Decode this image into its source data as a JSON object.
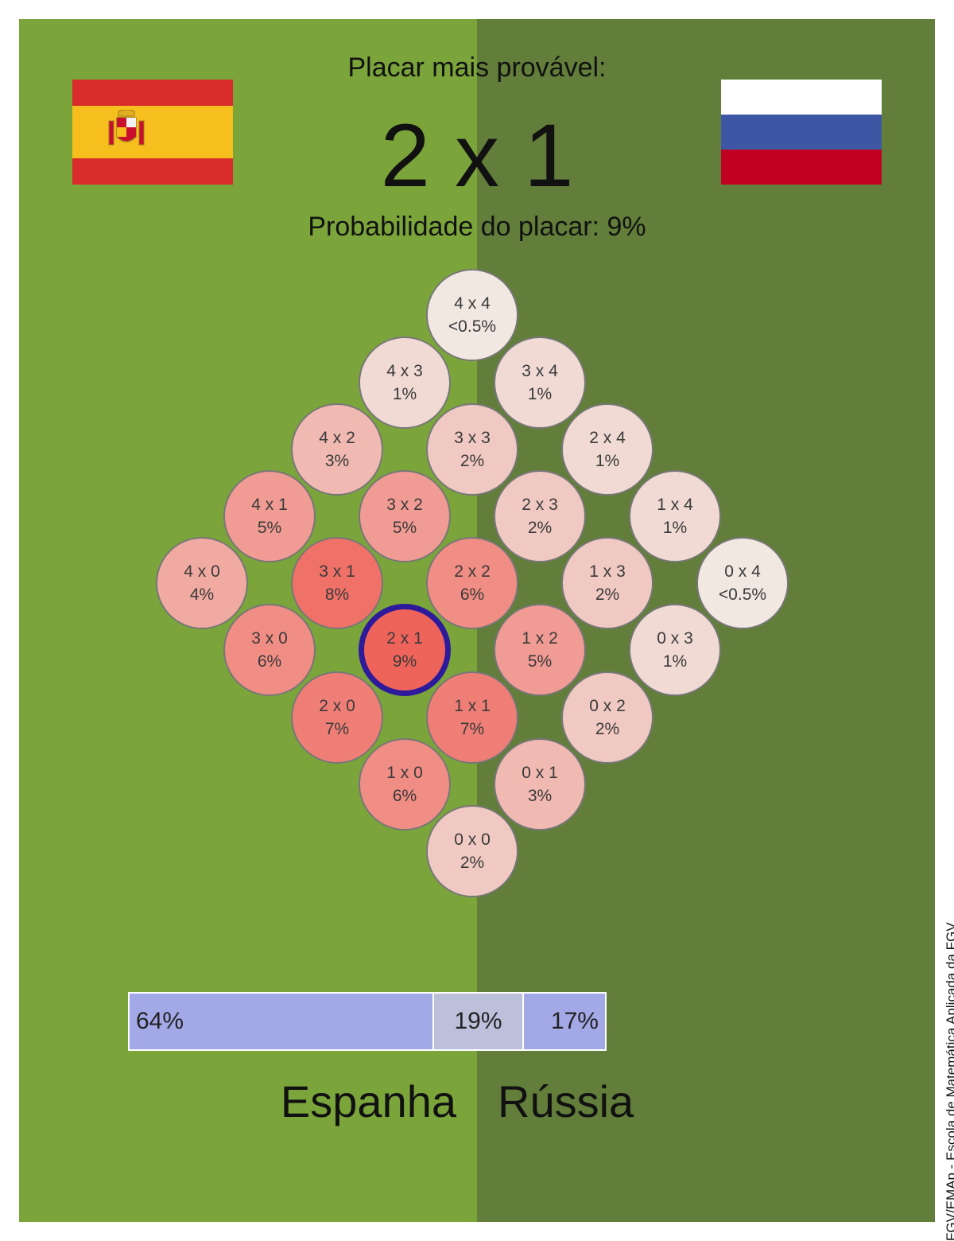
{
  "header": {
    "headline": "Placar mais provável:",
    "score": "2 x 1",
    "probability_text": "Probabilidade do placar: 9%"
  },
  "teams": {
    "home": "Espanha",
    "away": "Rússia"
  },
  "flags": {
    "home": {
      "name": "spain-flag",
      "colors": [
        "#d72b2c",
        "#f6bf1d",
        "#d72b2c"
      ]
    },
    "away": {
      "name": "russia-flag",
      "colors": [
        "#ffffff",
        "#3d57a5",
        "#c20022"
      ]
    }
  },
  "colors": {
    "field_left": "#7ba53b",
    "field_right": "#627e3a",
    "highlight_ring": "#2e1b9c",
    "bar_win": "#a3a8e6",
    "bar_draw": "#bcc0db"
  },
  "outcome_bar": {
    "home_win": "64%",
    "draw": "19%",
    "away_win": "17%",
    "home_win_value": 64,
    "draw_value": 19,
    "away_win_value": 17
  },
  "credit": "FGV/EMAp - Escola de Matemática Aplicada da FGV",
  "chart_data": {
    "type": "heatmap",
    "title": "Placar mais provável:",
    "most_likely": {
      "home": 2,
      "away": 1,
      "label": "2 x 1",
      "prob": "9%"
    },
    "cells": [
      {
        "home": 4,
        "away": 4,
        "label": "4 x 4",
        "prob": "<0.5%",
        "value": 0.3
      },
      {
        "home": 4,
        "away": 3,
        "label": "4 x 3",
        "prob": "1%",
        "value": 1
      },
      {
        "home": 3,
        "away": 4,
        "label": "3 x 4",
        "prob": "1%",
        "value": 1
      },
      {
        "home": 4,
        "away": 2,
        "label": "4 x 2",
        "prob": "3%",
        "value": 3
      },
      {
        "home": 3,
        "away": 3,
        "label": "3 x 3",
        "prob": "2%",
        "value": 2
      },
      {
        "home": 2,
        "away": 4,
        "label": "2 x 4",
        "prob": "1%",
        "value": 1
      },
      {
        "home": 4,
        "away": 1,
        "label": "4 x 1",
        "prob": "5%",
        "value": 5
      },
      {
        "home": 3,
        "away": 2,
        "label": "3 x 2",
        "prob": "5%",
        "value": 5
      },
      {
        "home": 2,
        "away": 3,
        "label": "2 x 3",
        "prob": "2%",
        "value": 2
      },
      {
        "home": 1,
        "away": 4,
        "label": "1 x 4",
        "prob": "1%",
        "value": 1
      },
      {
        "home": 4,
        "away": 0,
        "label": "4 x 0",
        "prob": "4%",
        "value": 4
      },
      {
        "home": 3,
        "away": 1,
        "label": "3 x 1",
        "prob": "8%",
        "value": 8
      },
      {
        "home": 2,
        "away": 2,
        "label": "2 x 2",
        "prob": "6%",
        "value": 6
      },
      {
        "home": 1,
        "away": 3,
        "label": "1 x 3",
        "prob": "2%",
        "value": 2
      },
      {
        "home": 0,
        "away": 4,
        "label": "0 x 4",
        "prob": "<0.5%",
        "value": 0.3
      },
      {
        "home": 3,
        "away": 0,
        "label": "3 x 0",
        "prob": "6%",
        "value": 6
      },
      {
        "home": 2,
        "away": 1,
        "label": "2 x 1",
        "prob": "9%",
        "value": 9
      },
      {
        "home": 1,
        "away": 2,
        "label": "1 x 2",
        "prob": "5%",
        "value": 5
      },
      {
        "home": 0,
        "away": 3,
        "label": "0 x 3",
        "prob": "1%",
        "value": 1
      },
      {
        "home": 2,
        "away": 0,
        "label": "2 x 0",
        "prob": "7%",
        "value": 7
      },
      {
        "home": 1,
        "away": 1,
        "label": "1 x 1",
        "prob": "7%",
        "value": 7
      },
      {
        "home": 0,
        "away": 2,
        "label": "0 x 2",
        "prob": "2%",
        "value": 2
      },
      {
        "home": 1,
        "away": 0,
        "label": "1 x 0",
        "prob": "6%",
        "value": 6
      },
      {
        "home": 0,
        "away": 1,
        "label": "0 x 1",
        "prob": "3%",
        "value": 3
      },
      {
        "home": 0,
        "away": 0,
        "label": "0 x 0",
        "prob": "2%",
        "value": 2
      }
    ]
  }
}
